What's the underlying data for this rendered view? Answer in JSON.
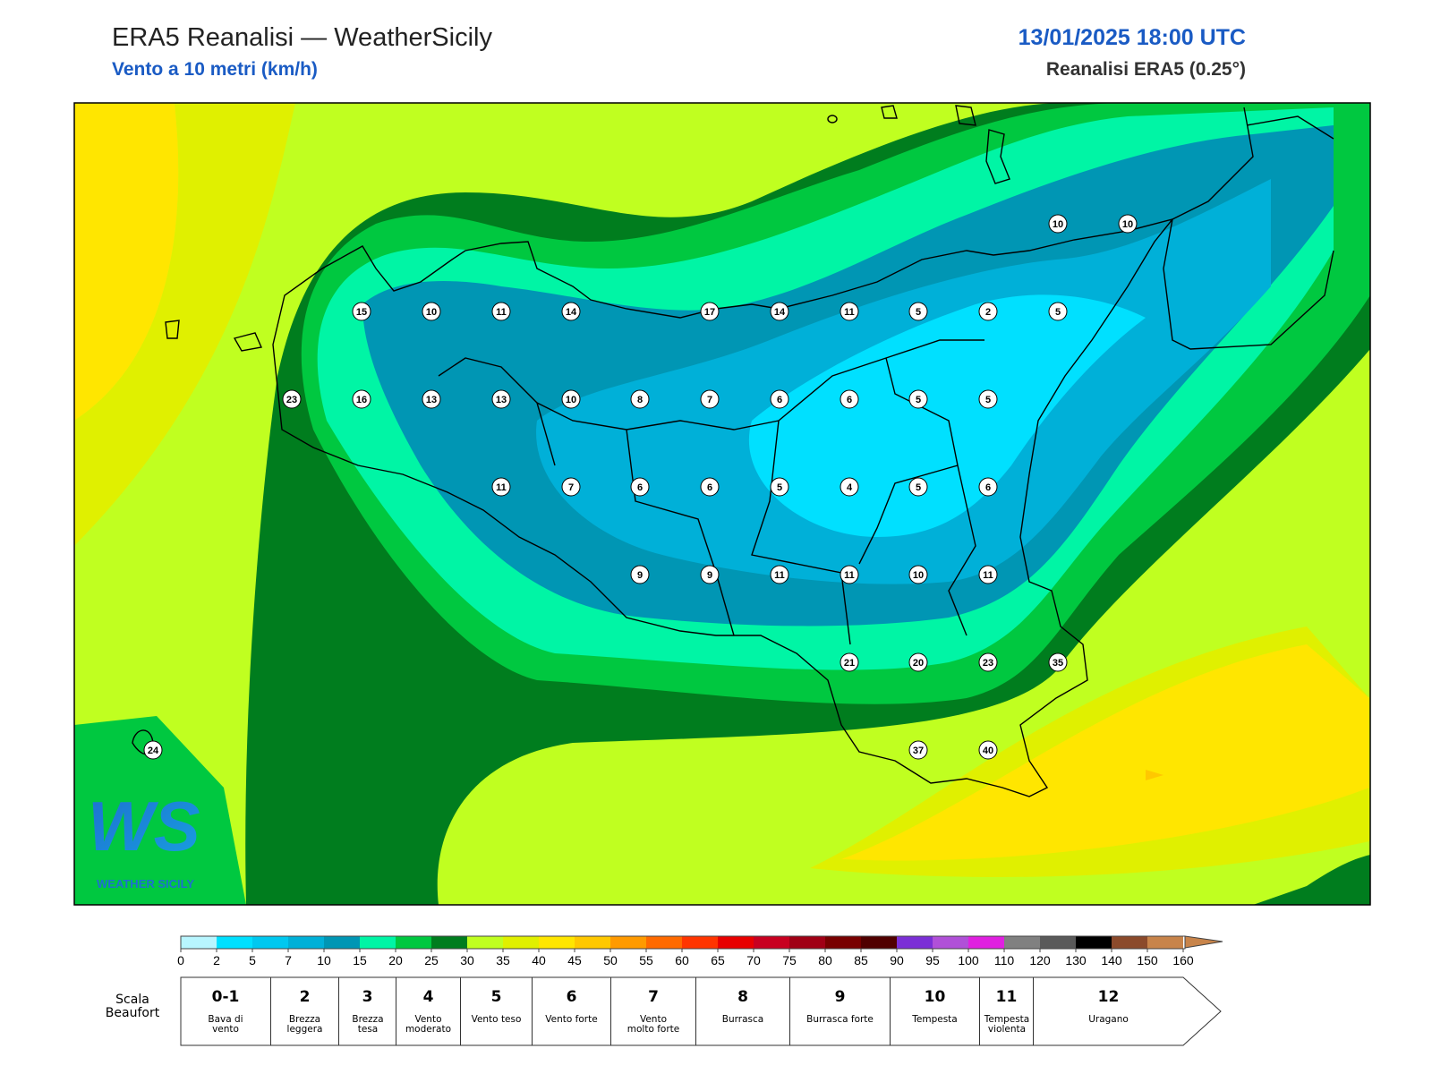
{
  "header": {
    "title": "ERA5 Reanalisi — WeatherSicily",
    "subtitle": "Vento a 10 metri (km/h)",
    "datetime": "13/01/2025 18:00 UTC",
    "source": "Reanalisi ERA5 (0.25°)"
  },
  "points": [
    10,
    10,
    15,
    10,
    11,
    14,
    17,
    14,
    11,
    5,
    2,
    5,
    23,
    16,
    13,
    13,
    10,
    8,
    7,
    6,
    6,
    5,
    5,
    11,
    7,
    6,
    6,
    5,
    4,
    5,
    6,
    9,
    9,
    11,
    11,
    10,
    11,
    21,
    20,
    23,
    35,
    24,
    37,
    40
  ],
  "logo": {
    "mark": "WS",
    "text": "WEATHER SICILY"
  },
  "colorbar": {
    "ticks": [
      0,
      2,
      5,
      7,
      10,
      15,
      20,
      25,
      30,
      35,
      40,
      45,
      50,
      55,
      60,
      65,
      70,
      75,
      80,
      85,
      90,
      95,
      100,
      110,
      120,
      130,
      140,
      150,
      160
    ],
    "colors": [
      "#b8f6ff",
      "#00e0ff",
      "#00c8f0",
      "#00b0d8",
      "#0096b4",
      "#00f5a5",
      "#00c840",
      "#007d1e",
      "#c0ff20",
      "#e0f000",
      "#ffe600",
      "#ffc800",
      "#ff9a00",
      "#ff6a00",
      "#ff3500",
      "#e80000",
      "#c80020",
      "#a00015",
      "#780000",
      "#500000",
      "#7b2fd6",
      "#b050d8",
      "#e020e0",
      "#808080",
      "#5a5a5a",
      "#000000",
      "#8b4a2b",
      "#c8844a"
    ]
  },
  "beaufort": {
    "label": "Scala Beaufort",
    "levels": [
      {
        "force": "0-1",
        "name": "Bava di vento"
      },
      {
        "force": "2",
        "name": "Brezza leggera"
      },
      {
        "force": "3",
        "name": "Brezza tesa"
      },
      {
        "force": "4",
        "name": "Vento moderato"
      },
      {
        "force": "5",
        "name": "Vento teso"
      },
      {
        "force": "6",
        "name": "Vento forte"
      },
      {
        "force": "7",
        "name": "Vento molto forte"
      },
      {
        "force": "8",
        "name": "Burrasca"
      },
      {
        "force": "9",
        "name": "Burrasca forte"
      },
      {
        "force": "10",
        "name": "Tempesta"
      },
      {
        "force": "11",
        "name": "Tempesta violenta"
      },
      {
        "force": "12",
        "name": "Uragano"
      }
    ]
  }
}
